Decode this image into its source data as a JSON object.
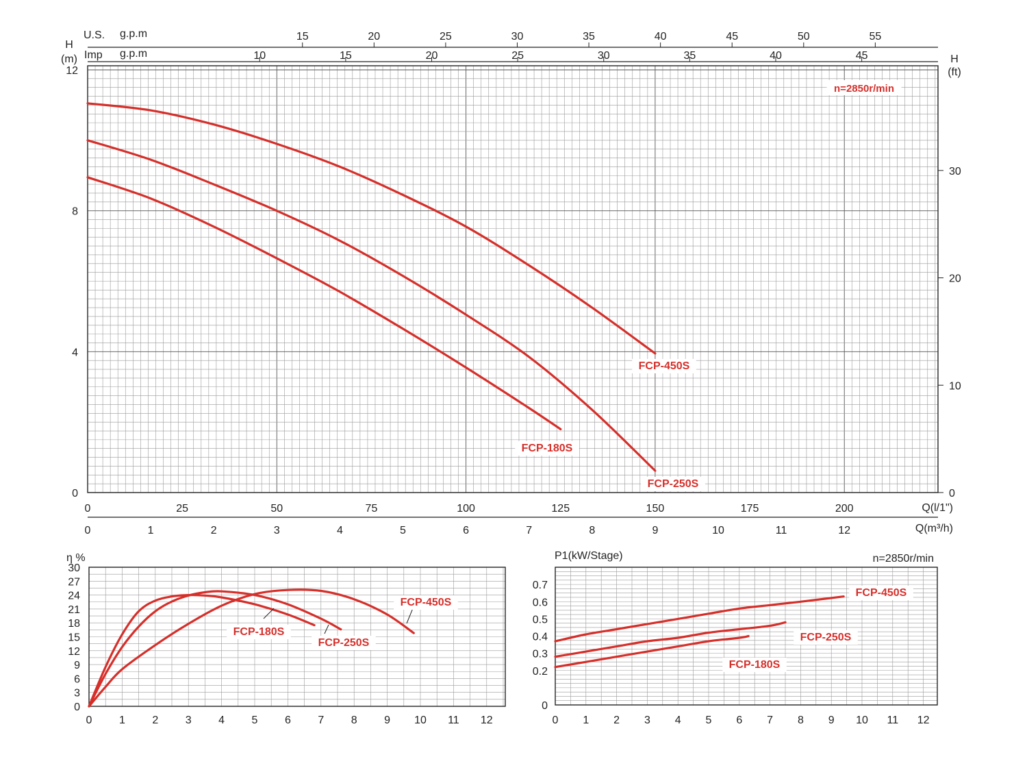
{
  "chart_data": [
    {
      "type": "line",
      "id": "head",
      "annotation": "n=2850r/min",
      "xlabel_flow": "Q(l/1\")",
      "xlabel_m3h": "Q(m³/h)",
      "ylabel_m": [
        "H",
        "(m)"
      ],
      "ylabel_ft": [
        "H",
        "(ft)"
      ],
      "top_labels": {
        "us": "U.S.",
        "imp": "Imp",
        "gpm": "g.p.m"
      },
      "xlim_m3h": [
        0,
        13.5
      ],
      "ylim_m": [
        0,
        12
      ],
      "ylim_ft": [
        0,
        39.37
      ],
      "x_ticks_flow": [
        "0",
        "25",
        "50",
        "75",
        "100",
        "125",
        "150",
        "175",
        "200"
      ],
      "x_ticks_m3h": [
        "0",
        "1",
        "2",
        "3",
        "4",
        "5",
        "6",
        "7",
        "8",
        "9",
        "10",
        "11",
        "12"
      ],
      "y_ticks_m": [
        "0",
        "4",
        "8",
        "12"
      ],
      "y_ticks_ft": [
        "0",
        "10",
        "20",
        "30"
      ],
      "us_gpm_ticks": [
        "15",
        "20",
        "25",
        "30",
        "35",
        "40",
        "45",
        "50",
        "55"
      ],
      "imp_gpm_ticks": [
        "10",
        "15",
        "20",
        "25",
        "30",
        "35",
        "40",
        "45"
      ],
      "series": [
        {
          "name": "FCP-180S",
          "x": [
            0,
            1,
            2,
            3,
            4,
            5,
            6,
            7,
            7.5
          ],
          "y": [
            8.95,
            8.35,
            7.55,
            6.65,
            5.7,
            4.65,
            3.55,
            2.4,
            1.8
          ]
        },
        {
          "name": "FCP-250S",
          "x": [
            0,
            1,
            2,
            3,
            4,
            5,
            6,
            7,
            8,
            9
          ],
          "y": [
            10.0,
            9.45,
            8.75,
            8.0,
            7.15,
            6.15,
            5.05,
            3.85,
            2.35,
            0.62
          ]
        },
        {
          "name": "FCP-450S",
          "x": [
            0,
            1,
            2,
            3,
            4,
            5,
            6,
            7,
            8,
            9
          ],
          "y": [
            11.05,
            10.85,
            10.45,
            9.9,
            9.25,
            8.45,
            7.55,
            6.45,
            5.25,
            3.95
          ]
        }
      ]
    },
    {
      "type": "line",
      "id": "efficiency",
      "ylabel": "η %",
      "xlim": [
        0,
        12.5
      ],
      "ylim": [
        0,
        30
      ],
      "x_ticks": [
        "0",
        "1",
        "2",
        "3",
        "4",
        "5",
        "6",
        "7",
        "8",
        "9",
        "10",
        "11",
        "12"
      ],
      "y_ticks": [
        "0",
        "3",
        "6",
        "9",
        "12",
        "15",
        "18",
        "21",
        "24",
        "27",
        "30"
      ],
      "series": [
        {
          "name": "FCP-180S",
          "x": [
            0,
            0.5,
            1,
            1.5,
            2,
            2.5,
            3,
            3.5,
            4,
            5,
            6,
            6.8
          ],
          "y": [
            0,
            8.5,
            15.5,
            20.5,
            22.8,
            23.7,
            24.0,
            23.9,
            23.5,
            22.0,
            19.8,
            17.5
          ]
        },
        {
          "name": "FCP-250S",
          "x": [
            0,
            0.5,
            1,
            1.5,
            2,
            2.5,
            3,
            3.5,
            4,
            5,
            6,
            7,
            7.6
          ],
          "y": [
            0,
            7.0,
            12.8,
            17.2,
            20.5,
            22.6,
            23.9,
            24.6,
            24.8,
            24.0,
            22.0,
            18.9,
            16.6
          ]
        },
        {
          "name": "FCP-450S",
          "x": [
            0,
            0.5,
            1,
            2,
            3,
            4,
            5,
            6,
            7,
            8,
            9,
            9.8
          ],
          "y": [
            0,
            4.2,
            8.0,
            13.2,
            17.8,
            21.7,
            24.2,
            25.1,
            24.9,
            23.1,
            19.8,
            15.8
          ]
        }
      ]
    },
    {
      "type": "line",
      "id": "power",
      "ylabel": "P1(kW/Stage)",
      "annotation": "n=2850r/min",
      "xlim": [
        0,
        12.5
      ],
      "ylim": [
        0,
        0.8
      ],
      "x_ticks": [
        "0",
        "1",
        "2",
        "3",
        "4",
        "5",
        "6",
        "7",
        "8",
        "9",
        "10",
        "11",
        "12"
      ],
      "y_ticks": [
        "0",
        "0.2",
        "0.3",
        "0.4",
        "0.5",
        "0.6",
        "0.7"
      ],
      "series": [
        {
          "name": "FCP-180S",
          "x": [
            0,
            1,
            2,
            3,
            4,
            5,
            6,
            6.3
          ],
          "y": [
            0.22,
            0.25,
            0.28,
            0.31,
            0.34,
            0.37,
            0.39,
            0.4
          ]
        },
        {
          "name": "FCP-250S",
          "x": [
            0,
            1,
            2,
            3,
            4,
            5,
            6,
            7,
            7.5
          ],
          "y": [
            0.28,
            0.31,
            0.34,
            0.37,
            0.39,
            0.42,
            0.44,
            0.46,
            0.48
          ]
        },
        {
          "name": "FCP-450S",
          "x": [
            0,
            1,
            2,
            3,
            4,
            5,
            6,
            7,
            8,
            9.4
          ],
          "y": [
            0.37,
            0.41,
            0.44,
            0.47,
            0.5,
            0.53,
            0.56,
            0.58,
            0.6,
            0.63
          ]
        }
      ]
    }
  ]
}
